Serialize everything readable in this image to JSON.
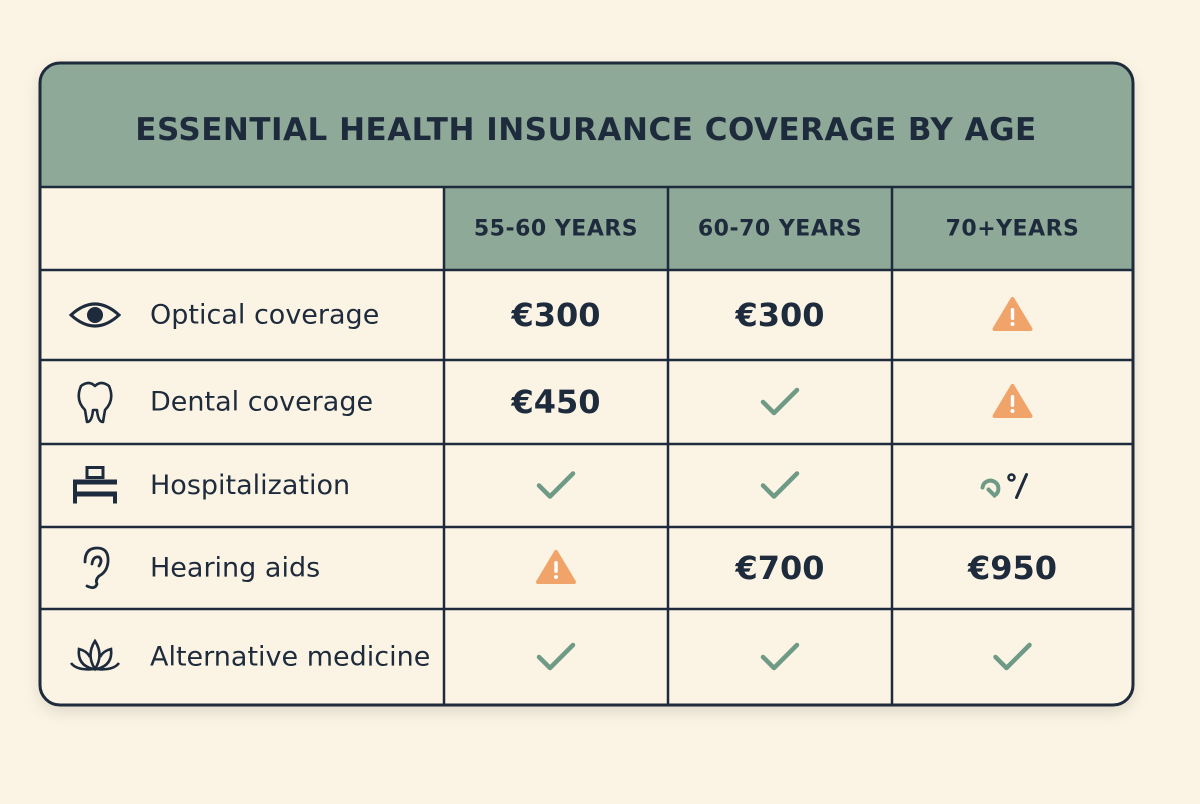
{
  "title": "ESSENTIAL HEALTH INSURANCE COVERAGE BY AGE",
  "table": {
    "columns": [
      "55-60 YEARS",
      "60-70 YEARS",
      "70+YEARS"
    ],
    "rows": [
      {
        "icon": "eye",
        "label": "Optical coverage",
        "cells": [
          "€300",
          "€300",
          {
            "icon": "warning"
          }
        ]
      },
      {
        "icon": "tooth",
        "label": "Dental coverage",
        "cells": [
          "€450",
          {
            "icon": "check"
          },
          {
            "icon": "warning"
          }
        ]
      },
      {
        "icon": "bed",
        "label": "Hospitalization",
        "cells": [
          {
            "icon": "check"
          },
          {
            "icon": "check"
          },
          {
            "icon": "partial"
          }
        ]
      },
      {
        "icon": "ear",
        "label": "Hearing aids",
        "cells": [
          {
            "icon": "warning"
          },
          "€700",
          "€950"
        ]
      },
      {
        "icon": "lotus",
        "label": "Alternative medicine",
        "cells": [
          {
            "icon": "check"
          },
          {
            "icon": "check"
          },
          {
            "icon": "check"
          }
        ]
      }
    ]
  }
}
